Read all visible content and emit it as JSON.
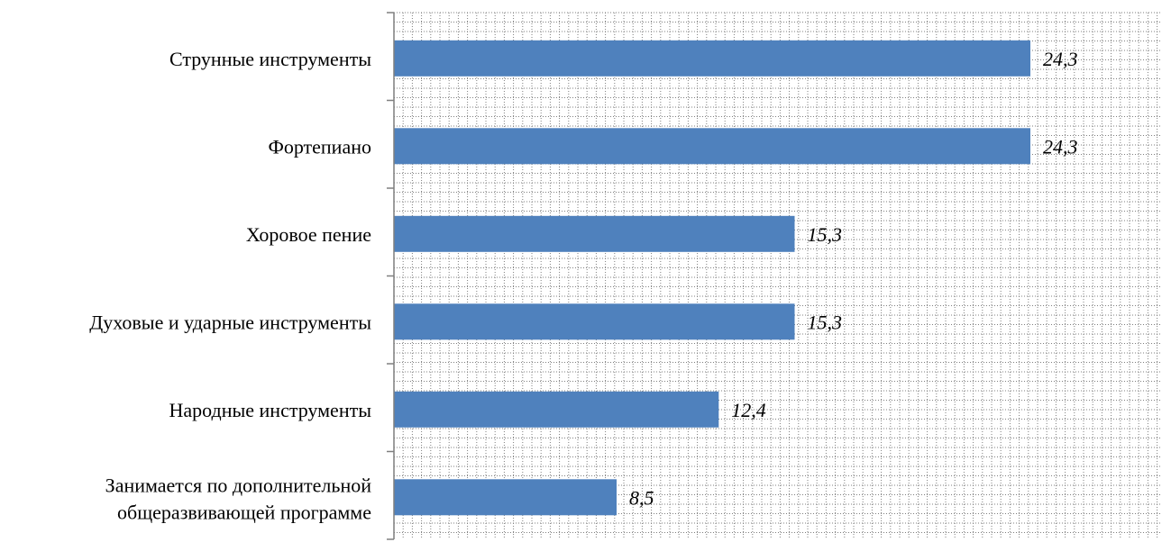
{
  "chart_data": {
    "type": "bar",
    "orientation": "horizontal",
    "categories": [
      "Струнные инструменты",
      "Фортепиано",
      "Хоровое пение",
      "Духовые и ударные инструменты",
      "Народные инструменты",
      "Занимается по дополнительной общеразвивающей программе"
    ],
    "value_labels": [
      "24,3",
      "24,3",
      "15,3",
      "15,3",
      "12,4",
      "8,5"
    ],
    "values": [
      24.3,
      24.3,
      15.3,
      15.3,
      12.4,
      8.5
    ],
    "title": "",
    "xlabel": "",
    "ylabel": "",
    "xlim": [
      0,
      30
    ],
    "grid": true,
    "legend": "none",
    "colors": {
      "bar": "#4F81BD",
      "grid": "#7f7f7f",
      "axis": "#7f7f7f"
    }
  }
}
